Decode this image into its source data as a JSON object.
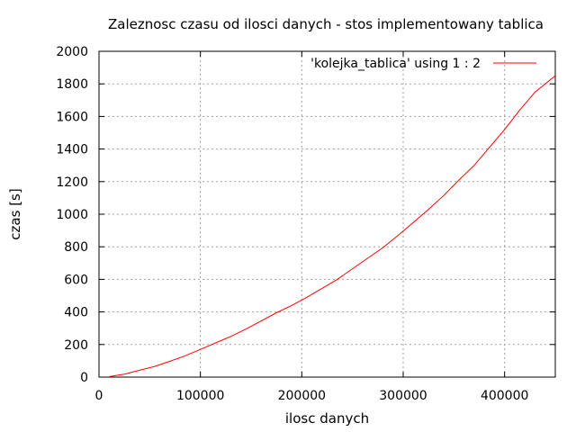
{
  "chart_data": {
    "type": "line",
    "title": "Zaleznosc czasu od ilosci danych - stos implementowany tablica",
    "xlabel": "ilosc danych",
    "ylabel": "czas [s]",
    "xlim": [
      0,
      450000
    ],
    "ylim": [
      0,
      2000
    ],
    "xticks": [
      0,
      100000,
      200000,
      300000,
      400000
    ],
    "yticks": [
      0,
      200,
      400,
      600,
      800,
      1000,
      1200,
      1400,
      1600,
      1800,
      2000
    ],
    "grid": true,
    "legend_position": "top-right",
    "series": [
      {
        "name": "'kolejka_tablica' using 1 : 2",
        "color": "#ff0000",
        "x": [
          10000,
          25000,
          40000,
          55000,
          70000,
          85000,
          100000,
          115000,
          130000,
          145000,
          160000,
          175000,
          190000,
          205000,
          220000,
          235000,
          250000,
          265000,
          280000,
          295000,
          310000,
          325000,
          340000,
          355000,
          370000,
          385000,
          400000,
          415000,
          430000,
          450000
        ],
        "y": [
          3,
          18,
          42,
          66,
          97,
          131,
          170,
          210,
          250,
          295,
          345,
          395,
          440,
          490,
          545,
          600,
          665,
          730,
          795,
          870,
          950,
          1030,
          1115,
          1210,
          1300,
          1410,
          1520,
          1640,
          1750,
          1850
        ]
      }
    ]
  }
}
